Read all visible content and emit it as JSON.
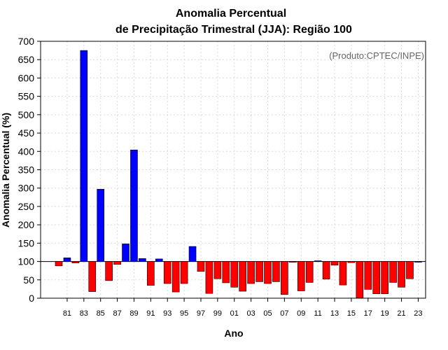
{
  "chart_data": {
    "type": "bar",
    "title": "Anomalia Percentual",
    "subtitle": "de Precipitação Trimestral (JJA): Região 100",
    "xlabel": "Ano",
    "ylabel": "Anomalia Percentual (%)",
    "annotation": "(Produto:CPTEC/INPE)",
    "ylim": [
      0,
      700
    ],
    "baseline": 100,
    "yticks": [
      0,
      50,
      100,
      150,
      200,
      250,
      300,
      350,
      400,
      450,
      500,
      550,
      600,
      650,
      700
    ],
    "grid": true,
    "colors": {
      "above": "#0000ff",
      "below": "#ff0000",
      "edge": "#000000"
    },
    "categories": [
      "80",
      "81",
      "82",
      "83",
      "84",
      "85",
      "86",
      "87",
      "88",
      "89",
      "90",
      "91",
      "92",
      "93",
      "94",
      "95",
      "96",
      "97",
      "98",
      "99",
      "00",
      "01",
      "02",
      "03",
      "04",
      "05",
      "06",
      "07",
      "08",
      "09",
      "10",
      "11",
      "12",
      "13",
      "14",
      "15",
      "16",
      "17",
      "18",
      "19",
      "20",
      "21",
      "22",
      "23"
    ],
    "xtick_labels": [
      "81",
      "83",
      "85",
      "87",
      "89",
      "91",
      "93",
      "95",
      "97",
      "99",
      "01",
      "03",
      "05",
      "07",
      "09",
      "11",
      "13",
      "15",
      "17",
      "19",
      "21",
      "23"
    ],
    "values": [
      88,
      110,
      96,
      675,
      18,
      297,
      48,
      92,
      148,
      404,
      108,
      35,
      107,
      40,
      17,
      40,
      141,
      73,
      13,
      53,
      42,
      30,
      19,
      40,
      45,
      40,
      45,
      10,
      98,
      20,
      43,
      102,
      52,
      90,
      36,
      97,
      1,
      24,
      12,
      12,
      43,
      30,
      53,
      100
    ]
  }
}
